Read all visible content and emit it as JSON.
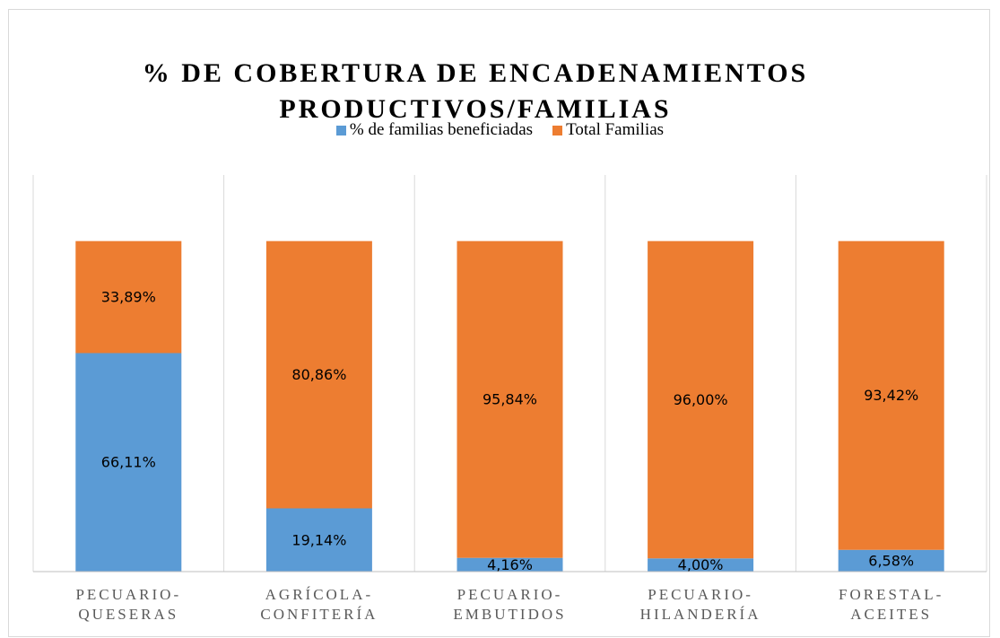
{
  "chart_data": {
    "type": "stacked_bar",
    "title": "% DE COBERTURA DE ENCADENAMIENTOS PRODUCTIVOS/FAMILIAS",
    "categories": [
      "PECUARIO-QUESERAS",
      "AGRÍCOLA-CONFITERÍA",
      "PECUARIO-EMBUTIDOS",
      "PECUARIO-HILANDERÍA",
      "FORESTAL-ACEITES"
    ],
    "series": [
      {
        "name": "% de familias beneficiadas",
        "color": "#5b9bd5",
        "values": [
          66.11,
          19.14,
          4.16,
          4.0,
          6.58
        ],
        "value_labels": [
          "66,11%",
          "19,14%",
          "4,16%",
          "4,00%",
          "6,58%"
        ]
      },
      {
        "name": "Total Familias",
        "color": "#ed7d31",
        "values": [
          33.89,
          80.86,
          95.84,
          96.0,
          93.42
        ],
        "value_labels": [
          "33,89%",
          "80,86%",
          "95,84%",
          "96,00%",
          "93,42%"
        ]
      }
    ],
    "ylim": [
      0,
      120
    ],
    "legend": "top"
  }
}
